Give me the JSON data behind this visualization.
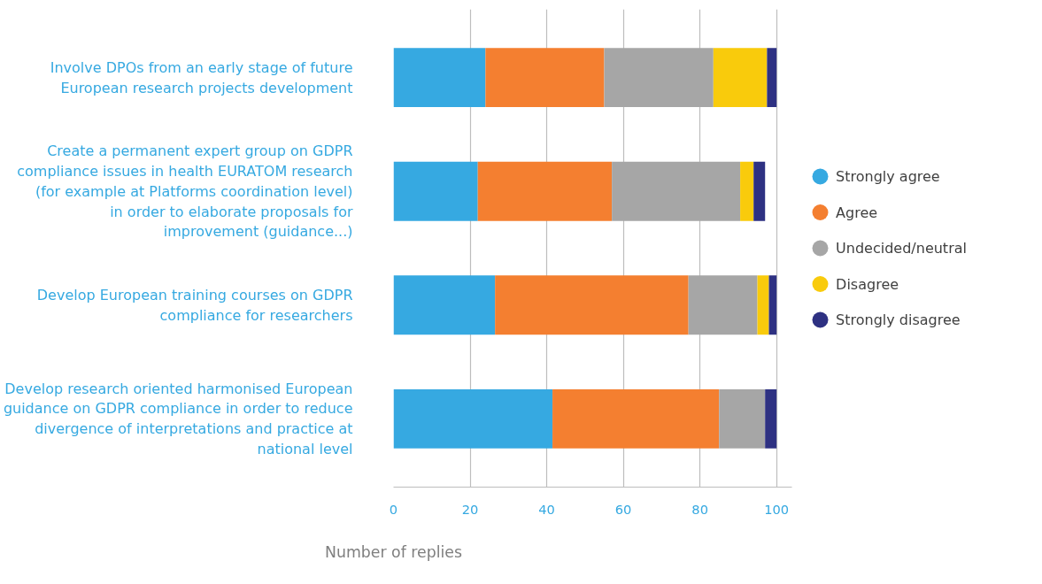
{
  "chart_data": {
    "type": "bar",
    "orientation": "horizontal",
    "stacked": true,
    "xlabel": "Number of replies",
    "categories": [
      "Involve DPOs from an early stage of future European research projects development",
      "Create a permanent expert group on GDPR compliance issues in health EURATOM research (for example at Platforms coordination level) in order to elaborate proposals for improvement (guidance...)",
      "Develop European training courses on GDPR compliance for researchers",
      "Develop research oriented harmonised European guidance on GDPR compliance in order to reduce divergence of interpretations and practice at national level"
    ],
    "series": [
      {
        "name": "Strongly agree",
        "color": "#36a9e1",
        "values": [
          24,
          22,
          26.5,
          41.5
        ]
      },
      {
        "name": "Agree",
        "color": "#f47f30",
        "values": [
          31,
          35,
          50.5,
          43.5
        ]
      },
      {
        "name": "Undecided/neutral",
        "color": "#a6a6a6",
        "values": [
          28.5,
          33.5,
          18,
          12
        ]
      },
      {
        "name": "Disagree",
        "color": "#f9cb0c",
        "values": [
          14,
          3.5,
          3,
          0
        ]
      },
      {
        "name": "Strongly disagree",
        "color": "#2e3182",
        "values": [
          2.5,
          3,
          2,
          3
        ]
      }
    ],
    "xlim": [
      0,
      104
    ],
    "xticks": [
      0,
      20,
      40,
      60,
      80,
      100
    ],
    "grid": "x",
    "legend": "right"
  }
}
